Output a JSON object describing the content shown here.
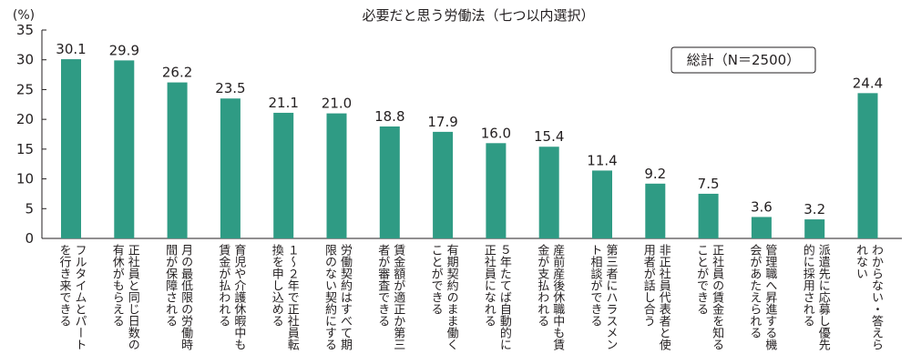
{
  "chart_data": {
    "type": "bar",
    "title": "必要だと思う労働法（七つ以内選択）",
    "y_unit": "(%)",
    "ylim": [
      0,
      35
    ],
    "yticks": [
      0,
      5,
      10,
      15,
      20,
      25,
      30,
      35
    ],
    "grid": false,
    "bar_color": "#2f9b84",
    "note": "総計（N＝2500）",
    "categories": [
      [
        "フルタイムとパート",
        "を行き来できる"
      ],
      [
        "正社員と同じ日数の",
        "有休がもらえる"
      ],
      [
        "月の最低限の労働時",
        "間が保障される"
      ],
      [
        "育児や介護休暇中も",
        "賃金が払われる"
      ],
      [
        "１～２年で正社員転",
        "換を申し込める"
      ],
      [
        "労働契約はすべて期",
        "限のない契約にする"
      ],
      [
        "賃金額が適正か第三",
        "者が審査できる"
      ],
      [
        "有期契約のまま働く",
        "ことができる"
      ],
      [
        "５年たてば自動的に",
        "正社員になれる"
      ],
      [
        "産前産後休職中も賃",
        "金が支払われる"
      ],
      [
        "第三者にハラスメン",
        "ト相談ができる"
      ],
      [
        "非正社員代表者と使",
        "用者が話し合う"
      ],
      [
        "正社員の賃金を知る",
        "ことができる"
      ],
      [
        "管理職へ昇進する機",
        "会があたえられる"
      ],
      [
        "派遣先に応募し優先",
        "的に採用される"
      ],
      [
        "わからない・答えら",
        "れない"
      ]
    ],
    "values": [
      30.1,
      29.9,
      26.2,
      23.5,
      21.1,
      21.0,
      18.8,
      17.9,
      16.0,
      15.4,
      11.4,
      9.2,
      7.5,
      3.6,
      3.2,
      24.4
    ],
    "value_labels": [
      "30.1",
      "29.9",
      "26.2",
      "23.5",
      "21.1",
      "21.0",
      "18.8",
      "17.9",
      "16.0",
      "15.4",
      "11.4",
      "9.2",
      "7.5",
      "3.6",
      "3.2",
      "24.4"
    ]
  }
}
